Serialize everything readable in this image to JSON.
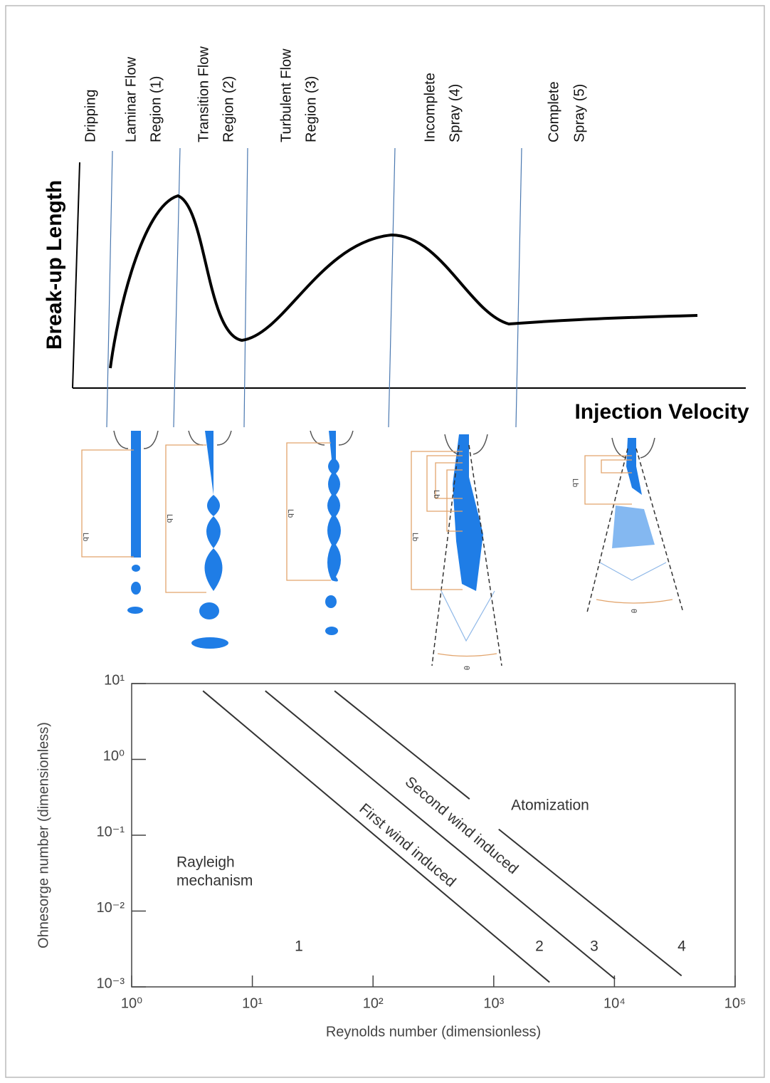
{
  "regime_diagram": {
    "regions": [
      [
        "Dripping"
      ],
      [
        "Laminar Flow",
        "Region (1)"
      ],
      [
        "Transition Flow",
        "Region (2)"
      ],
      [
        "Turbulent Flow",
        "Region (3)"
      ],
      [
        "Incomplete",
        "Spray (4)"
      ],
      [
        "Complete",
        "Spray (5)"
      ]
    ],
    "y_label": "Break-up Length",
    "x_label": "Injection Velocity"
  },
  "illustration": {
    "breakup_length": "Lb",
    "spray_angle": "θ"
  },
  "chart_data": {
    "type": "line",
    "xlabel": "Reynolds number (dimensionless)",
    "ylabel": "Ohnesorge number (dimensionless)",
    "xscale": "log",
    "yscale": "log",
    "xlim": [
      1,
      100000
    ],
    "ylim": [
      0.001,
      10
    ],
    "xticks": [
      {
        "value": 1,
        "label": "10⁰"
      },
      {
        "value": 10,
        "label": "10¹"
      },
      {
        "value": 100,
        "label": "10²"
      },
      {
        "value": 1000,
        "label": "10³"
      },
      {
        "value": 10000,
        "label": "10⁴"
      },
      {
        "value": 100000,
        "label": "10⁵"
      }
    ],
    "yticks": [
      {
        "value": 0.001,
        "label": "10⁻³"
      },
      {
        "value": 0.01,
        "label": "10⁻²"
      },
      {
        "value": 0.1,
        "label": "10⁻¹"
      },
      {
        "value": 1,
        "label": "10⁰"
      },
      {
        "value": 10,
        "label": "10¹"
      }
    ],
    "series": [
      {
        "color": "#333333",
        "x": [
          3.9,
          2900
        ],
        "values": [
          8,
          0.00115
        ]
      },
      {
        "color": "#333333",
        "x": [
          12.8,
          10100
        ],
        "values": [
          8,
          0.00127
        ]
      },
      {
        "color": "#333333",
        "x": [
          48,
          630,
          null,
          1100,
          36000
        ],
        "values": [
          8,
          0.3,
          null,
          0.12,
          0.0014
        ]
      }
    ],
    "annotations": [
      "Rayleigh",
      "mechanism",
      "First wind induced",
      "Second wind induced",
      "Atomization",
      "1",
      "2",
      "3",
      "4"
    ]
  }
}
